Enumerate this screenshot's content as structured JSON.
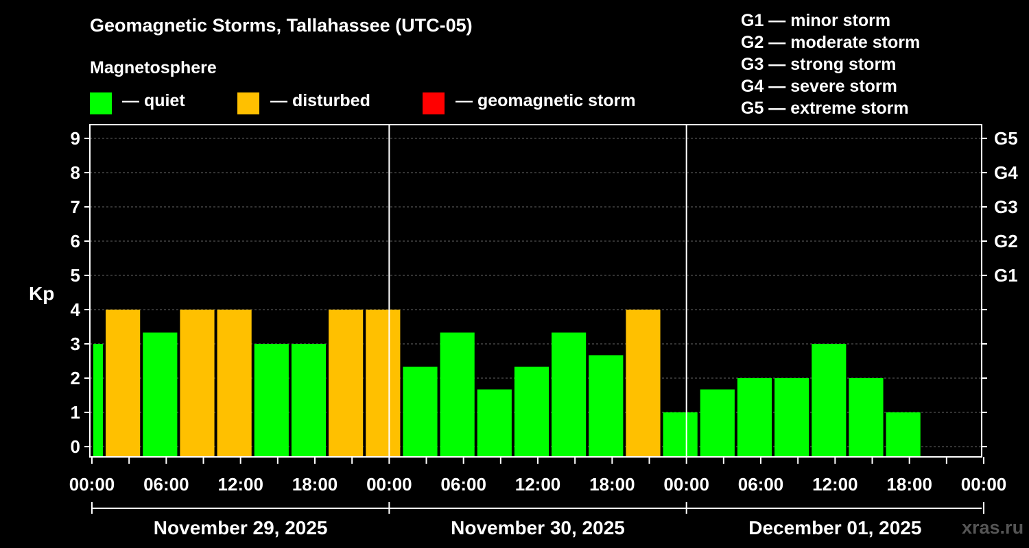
{
  "title": "Geomagnetic Storms, Tallahassee (UTC-05)",
  "magnetosphere_title": "Magnetosphere",
  "legend": [
    {
      "label": "— quiet",
      "color": "#00ff00"
    },
    {
      "label": "— disturbed",
      "color": "#ffc000"
    },
    {
      "label": "— geomagnetic storm",
      "color": "#ff0000"
    }
  ],
  "storm_scale": [
    "G1 — minor storm",
    "G2 — moderate storm",
    "G3 — strong storm",
    "G4 — severe storm",
    "G5 — extreme storm"
  ],
  "watermark": "xras.ru",
  "chart_data": {
    "type": "bar",
    "ylabel": "Kp",
    "ylim": [
      0,
      9
    ],
    "y_ticks": [
      "0",
      "1",
      "2",
      "3",
      "4",
      "5",
      "6",
      "7",
      "8",
      "9"
    ],
    "right_axis_labels": [
      {
        "kp": 5,
        "label": "G1"
      },
      {
        "kp": 6,
        "label": "G2"
      },
      {
        "kp": 7,
        "label": "G3"
      },
      {
        "kp": 8,
        "label": "G4"
      },
      {
        "kp": 9,
        "label": "G5"
      }
    ],
    "x_tick_labels": [
      "00:00",
      "06:00",
      "12:00",
      "18:00",
      "00:00",
      "06:00",
      "12:00",
      "18:00",
      "00:00",
      "06:00",
      "12:00",
      "18:00",
      "00:00"
    ],
    "dates": [
      "November 29, 2025",
      "November 30, 2025",
      "December 01, 2025"
    ],
    "hours_total": 72,
    "grid": "dashed horizontal",
    "bars": [
      {
        "start_hour": 0,
        "end_hour": 1,
        "kp": 3.0,
        "level": "quiet"
      },
      {
        "start_hour": 1,
        "end_hour": 4,
        "kp": 4.0,
        "level": "disturbed"
      },
      {
        "start_hour": 4,
        "end_hour": 7,
        "kp": 3.33,
        "level": "quiet"
      },
      {
        "start_hour": 7,
        "end_hour": 10,
        "kp": 4.0,
        "level": "disturbed"
      },
      {
        "start_hour": 10,
        "end_hour": 13,
        "kp": 4.0,
        "level": "disturbed"
      },
      {
        "start_hour": 13,
        "end_hour": 16,
        "kp": 3.0,
        "level": "quiet"
      },
      {
        "start_hour": 16,
        "end_hour": 19,
        "kp": 3.0,
        "level": "quiet"
      },
      {
        "start_hour": 19,
        "end_hour": 22,
        "kp": 4.0,
        "level": "disturbed"
      },
      {
        "start_hour": 22,
        "end_hour": 25,
        "kp": 4.0,
        "level": "disturbed"
      },
      {
        "start_hour": 25,
        "end_hour": 28,
        "kp": 2.33,
        "level": "quiet"
      },
      {
        "start_hour": 28,
        "end_hour": 31,
        "kp": 3.33,
        "level": "quiet"
      },
      {
        "start_hour": 31,
        "end_hour": 34,
        "kp": 1.67,
        "level": "quiet"
      },
      {
        "start_hour": 34,
        "end_hour": 37,
        "kp": 2.33,
        "level": "quiet"
      },
      {
        "start_hour": 37,
        "end_hour": 40,
        "kp": 3.33,
        "level": "quiet"
      },
      {
        "start_hour": 40,
        "end_hour": 43,
        "kp": 2.67,
        "level": "quiet"
      },
      {
        "start_hour": 43,
        "end_hour": 46,
        "kp": 4.0,
        "level": "disturbed"
      },
      {
        "start_hour": 46,
        "end_hour": 49,
        "kp": 1.0,
        "level": "quiet"
      },
      {
        "start_hour": 49,
        "end_hour": 52,
        "kp": 1.67,
        "level": "quiet"
      },
      {
        "start_hour": 52,
        "end_hour": 55,
        "kp": 2.0,
        "level": "quiet"
      },
      {
        "start_hour": 55,
        "end_hour": 58,
        "kp": 2.0,
        "level": "quiet"
      },
      {
        "start_hour": 58,
        "end_hour": 61,
        "kp": 3.0,
        "level": "quiet"
      },
      {
        "start_hour": 61,
        "end_hour": 64,
        "kp": 2.0,
        "level": "quiet"
      },
      {
        "start_hour": 64,
        "end_hour": 67,
        "kp": 1.0,
        "level": "quiet"
      }
    ]
  }
}
